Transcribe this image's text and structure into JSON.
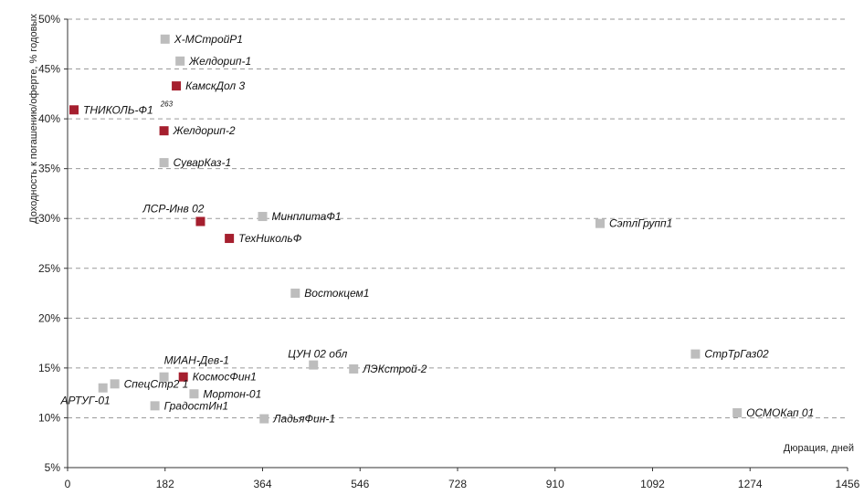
{
  "chart_data": {
    "type": "scatter",
    "xlabel": "Дюрация, дней",
    "ylabel": "Доходность к погашению/оферте, % годовых",
    "xlim": [
      0,
      1456
    ],
    "ylim": [
      5,
      50
    ],
    "x_ticks": [
      0,
      182,
      364,
      546,
      728,
      910,
      1092,
      1274,
      1456
    ],
    "y_ticks": [
      5,
      10,
      15,
      20,
      25,
      30,
      35,
      40,
      45,
      50
    ],
    "y_tick_suffix": "%",
    "grid": "horizontal",
    "colors": {
      "gray": "#bdbdbd",
      "red": "#a51f2e"
    },
    "points": [
      {
        "label": "Х-МСтройР1",
        "x": 182,
        "y": 48,
        "color": "gray",
        "label_pos": "right"
      },
      {
        "label": "Желдорип-1",
        "x": 210,
        "y": 45.8,
        "color": "gray",
        "label_pos": "right"
      },
      {
        "label": "КамскДол 3",
        "x": 203,
        "y": 43.3,
        "color": "red",
        "label_pos": "right"
      },
      {
        "label": "ТНИКОЛЬ-Ф1",
        "x": 12,
        "y": 40.9,
        "color": "red",
        "label_pos": "right",
        "sup": "263"
      },
      {
        "label": "Желдорип-2",
        "x": 180,
        "y": 38.8,
        "color": "red",
        "label_pos": "right"
      },
      {
        "label": "СуварКаз-1",
        "x": 180,
        "y": 35.6,
        "color": "gray",
        "label_pos": "right"
      },
      {
        "label": "ЛСР-Инв 02",
        "x": 248,
        "y": 29.7,
        "color": "red",
        "label_pos": "above-left"
      },
      {
        "label": "МинплитаФ1",
        "x": 364,
        "y": 30.2,
        "color": "gray",
        "label_pos": "right"
      },
      {
        "label": "ТехНикольФ",
        "x": 302,
        "y": 28.0,
        "color": "red",
        "label_pos": "right"
      },
      {
        "label": "СэтлГрупп1",
        "x": 994,
        "y": 29.5,
        "color": "gray",
        "label_pos": "right"
      },
      {
        "label": "Востокцем1",
        "x": 425,
        "y": 22.5,
        "color": "gray",
        "label_pos": "right"
      },
      {
        "label": "ЦУН 02 обл",
        "x": 459,
        "y": 15.3,
        "color": "gray",
        "label_pos": "above"
      },
      {
        "label": "ЛЭКстрой-2",
        "x": 534,
        "y": 14.9,
        "color": "gray",
        "label_pos": "right"
      },
      {
        "label": "СтрТрГаз02",
        "x": 1172,
        "y": 16.4,
        "color": "gray",
        "label_pos": "right"
      },
      {
        "label": "ОСМОКап 01",
        "x": 1250,
        "y": 10.5,
        "color": "gray",
        "label_pos": "right"
      },
      {
        "label": "МИАН-Дев-1",
        "x": 180,
        "y": 14.1,
        "color": "gray",
        "label_pos": "above-right"
      },
      {
        "label": "КосмосФин1",
        "x": 216,
        "y": 14.1,
        "color": "red",
        "label_pos": "right"
      },
      {
        "label": "СпецСтр2 1",
        "x": 88,
        "y": 13.4,
        "color": "gray",
        "label_pos": "right"
      },
      {
        "label": "АРТУГ-01",
        "x": 66,
        "y": 13.0,
        "color": "gray",
        "label_pos": "below-left"
      },
      {
        "label": "Мортон-01",
        "x": 236,
        "y": 12.4,
        "color": "gray",
        "label_pos": "right"
      },
      {
        "label": "ГрадостИн1",
        "x": 163,
        "y": 11.2,
        "color": "gray",
        "label_pos": "right"
      },
      {
        "label": "ЛадьяФин-1",
        "x": 367,
        "y": 9.9,
        "color": "gray",
        "label_pos": "right"
      }
    ]
  }
}
